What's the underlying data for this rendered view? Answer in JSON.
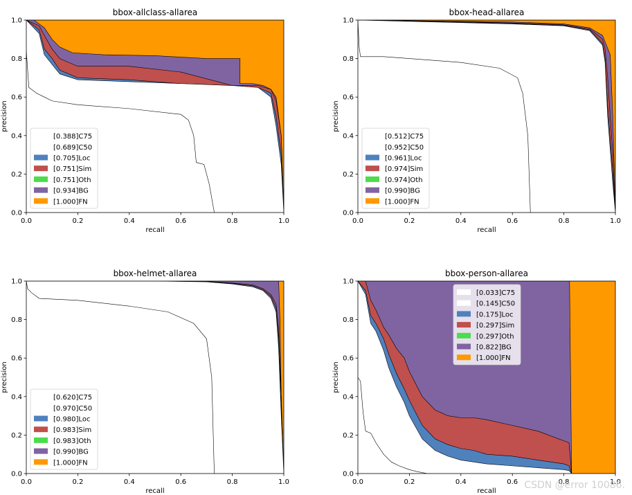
{
  "chart_data": [
    {
      "type": "area",
      "title": "bbox-allclass-allarea",
      "xlabel": "recall",
      "ylabel": "precision",
      "xlim": [
        0,
        1
      ],
      "ylim": [
        0,
        1
      ],
      "xticks": [
        "0.0",
        "0.2",
        "0.4",
        "0.6",
        "0.8",
        "1.0"
      ],
      "yticks": [
        "0.0",
        "0.2",
        "0.4",
        "0.6",
        "0.8",
        "1.0"
      ],
      "legend_position": "lower-left",
      "legend": [
        "[0.388]C75",
        "[0.689]C50",
        "[0.705]Loc",
        "[0.751]Sim",
        "[0.751]Oth",
        "[0.934]BG",
        "[1.000]FN"
      ],
      "series": [
        {
          "name": "FN",
          "x": [
            0,
            0.82,
            0.82,
            1.0
          ],
          "y": [
            1,
            1,
            1,
            1
          ]
        },
        {
          "name": "BG",
          "x": [
            0,
            0.03,
            0.05,
            0.07,
            0.1,
            0.13,
            0.18,
            0.3,
            0.5,
            0.7,
            0.83,
            0.83,
            0.88,
            0.92,
            0.95,
            0.97,
            0.99,
            1.0
          ],
          "y": [
            1,
            1,
            0.98,
            0.96,
            0.9,
            0.86,
            0.83,
            0.82,
            0.815,
            0.8,
            0.8,
            0.67,
            0.67,
            0.66,
            0.64,
            0.6,
            0.4,
            0
          ]
        },
        {
          "name": "Sim",
          "x": [
            0,
            0.05,
            0.07,
            0.1,
            0.13,
            0.2,
            0.4,
            0.6,
            0.8,
            0.9,
            0.95,
            0.97,
            0.99,
            1.0
          ],
          "y": [
            1,
            0.97,
            0.92,
            0.85,
            0.8,
            0.76,
            0.76,
            0.73,
            0.66,
            0.66,
            0.64,
            0.58,
            0.4,
            0
          ]
        },
        {
          "name": "Loc",
          "x": [
            0,
            0.05,
            0.07,
            0.1,
            0.13,
            0.2,
            0.4,
            0.6,
            0.8,
            0.9,
            0.95,
            0.97,
            0.99,
            1.0
          ],
          "y": [
            1,
            0.95,
            0.85,
            0.8,
            0.74,
            0.7,
            0.69,
            0.67,
            0.66,
            0.65,
            0.62,
            0.5,
            0.3,
            0
          ]
        },
        {
          "name": "C50",
          "x": [
            0,
            0.05,
            0.07,
            0.1,
            0.13,
            0.2,
            0.4,
            0.6,
            0.8,
            0.9,
            0.95,
            0.97,
            0.99,
            1.0
          ],
          "y": [
            1,
            0.93,
            0.82,
            0.77,
            0.72,
            0.69,
            0.68,
            0.67,
            0.66,
            0.65,
            0.6,
            0.45,
            0.25,
            0
          ]
        },
        {
          "name": "C75",
          "x": [
            0,
            0.01,
            0.04,
            0.07,
            0.1,
            0.2,
            0.4,
            0.6,
            0.63,
            0.65,
            0.66,
            0.69,
            0.71,
            0.73
          ],
          "y": [
            0.84,
            0.65,
            0.62,
            0.6,
            0.58,
            0.56,
            0.54,
            0.51,
            0.48,
            0.4,
            0.26,
            0.25,
            0.15,
            0
          ]
        }
      ]
    },
    {
      "type": "area",
      "title": "bbox-head-allarea",
      "xlabel": "recall",
      "ylabel": "precision",
      "xlim": [
        0,
        1
      ],
      "ylim": [
        0,
        1
      ],
      "xticks": [
        "0.0",
        "0.2",
        "0.4",
        "0.6",
        "0.8",
        "1.0"
      ],
      "yticks": [
        "0.0",
        "0.2",
        "0.4",
        "0.6",
        "0.8",
        "1.0"
      ],
      "legend_position": "lower-left",
      "legend": [
        "[0.512]C75",
        "[0.952]C50",
        "[0.961]Loc",
        "[0.974]Sim",
        "[0.974]Oth",
        "[0.990]BG",
        "[1.000]FN"
      ],
      "series": [
        {
          "name": "FN",
          "x": [
            0,
            1.0
          ],
          "y": [
            1,
            1
          ]
        },
        {
          "name": "BG",
          "x": [
            0,
            0.3,
            0.6,
            0.8,
            0.9,
            0.95,
            0.98,
            0.99,
            1.0
          ],
          "y": [
            1,
            0.995,
            0.99,
            0.98,
            0.96,
            0.92,
            0.82,
            0.5,
            0
          ]
        },
        {
          "name": "Sim",
          "x": [
            0,
            0.3,
            0.6,
            0.8,
            0.9,
            0.95,
            0.96,
            0.97,
            0.99,
            1.0
          ],
          "y": [
            1,
            0.995,
            0.985,
            0.975,
            0.955,
            0.9,
            0.85,
            0.7,
            0.3,
            0
          ]
        },
        {
          "name": "Loc",
          "x": [
            0,
            0.3,
            0.6,
            0.8,
            0.9,
            0.95,
            0.96,
            0.97,
            0.99,
            1.0
          ],
          "y": [
            1,
            0.993,
            0.982,
            0.972,
            0.95,
            0.88,
            0.8,
            0.55,
            0.2,
            0
          ]
        },
        {
          "name": "C50",
          "x": [
            0,
            0.3,
            0.6,
            0.8,
            0.9,
            0.95,
            0.96,
            0.97,
            0.99,
            1.0
          ],
          "y": [
            1,
            0.99,
            0.98,
            0.97,
            0.945,
            0.87,
            0.78,
            0.5,
            0.15,
            0
          ]
        },
        {
          "name": "C75",
          "x": [
            0,
            0.005,
            0.01,
            0.1,
            0.2,
            0.4,
            0.55,
            0.62,
            0.64,
            0.66,
            0.67
          ],
          "y": [
            1.0,
            0.86,
            0.81,
            0.81,
            0.8,
            0.78,
            0.75,
            0.7,
            0.62,
            0.4,
            0
          ]
        }
      ]
    },
    {
      "type": "area",
      "title": "bbox-helmet-allarea",
      "xlabel": "recall",
      "ylabel": "precision",
      "xlim": [
        0,
        1
      ],
      "ylim": [
        0,
        1
      ],
      "xticks": [
        "0.0",
        "0.2",
        "0.4",
        "0.6",
        "0.8",
        "1.0"
      ],
      "yticks": [
        "0.0",
        "0.2",
        "0.4",
        "0.6",
        "0.8",
        "1.0"
      ],
      "legend_position": "lower-left",
      "legend": [
        "[0.620]C75",
        "[0.970]C50",
        "[0.980]Loc",
        "[0.983]Sim",
        "[0.983]Oth",
        "[0.990]BG",
        "[1.000]FN"
      ],
      "series": [
        {
          "name": "FN",
          "x": [
            0,
            1.0
          ],
          "y": [
            1,
            1
          ]
        },
        {
          "name": "BG",
          "x": [
            0,
            0.5,
            0.7,
            0.9,
            0.98,
            0.985,
            0.99,
            1.0
          ],
          "y": [
            1,
            1,
            1,
            1,
            1,
            0.8,
            0.4,
            0
          ]
        },
        {
          "name": "Sim",
          "x": [
            0,
            0.5,
            0.7,
            0.8,
            0.88,
            0.92,
            0.95,
            0.97,
            0.98,
            0.99,
            1.0
          ],
          "y": [
            1,
            1,
            0.998,
            0.99,
            0.98,
            0.96,
            0.93,
            0.88,
            0.75,
            0.4,
            0
          ]
        },
        {
          "name": "Loc",
          "x": [
            0,
            0.5,
            0.7,
            0.8,
            0.88,
            0.92,
            0.95,
            0.97,
            0.98,
            0.99,
            1.0
          ],
          "y": [
            1,
            1,
            0.997,
            0.988,
            0.975,
            0.955,
            0.92,
            0.86,
            0.7,
            0.35,
            0
          ]
        },
        {
          "name": "C50",
          "x": [
            0,
            0.5,
            0.7,
            0.8,
            0.88,
            0.92,
            0.95,
            0.97,
            0.98,
            0.99,
            1.0
          ],
          "y": [
            1,
            1,
            0.996,
            0.985,
            0.97,
            0.95,
            0.91,
            0.84,
            0.65,
            0.3,
            0
          ]
        },
        {
          "name": "C75",
          "x": [
            0,
            0.005,
            0.02,
            0.05,
            0.2,
            0.4,
            0.55,
            0.65,
            0.7,
            0.72,
            0.73
          ],
          "y": [
            1.0,
            0.96,
            0.94,
            0.91,
            0.9,
            0.87,
            0.84,
            0.78,
            0.7,
            0.5,
            0
          ]
        }
      ]
    },
    {
      "type": "area",
      "title": "bbox-person-allarea",
      "xlabel": "recall",
      "ylabel": "precision",
      "xlim": [
        0,
        1
      ],
      "ylim": [
        0,
        1
      ],
      "xticks": [
        "0.0",
        "0.2",
        "0.4",
        "0.6",
        "0.8",
        "1.0"
      ],
      "yticks": [
        "0.0",
        "0.2",
        "0.4",
        "0.6",
        "0.8",
        "1.0"
      ],
      "legend_position": "upper-center",
      "legend": [
        "[0.033]C75",
        "[0.145]C50",
        "[0.175]Loc",
        "[0.297]Sim",
        "[0.297]Oth",
        "[0.822]BG",
        "[1.000]FN"
      ],
      "series": [
        {
          "name": "FN",
          "x": [
            0,
            1.0
          ],
          "y": [
            1,
            1
          ]
        },
        {
          "name": "BG",
          "x": [
            0,
            0.822,
            0.822,
            0.83
          ],
          "y": [
            1,
            1,
            1,
            0
          ]
        },
        {
          "name": "Sim",
          "x": [
            0,
            0.03,
            0.05,
            0.07,
            0.08,
            0.1,
            0.12,
            0.15,
            0.18,
            0.2,
            0.25,
            0.3,
            0.35,
            0.4,
            0.45,
            0.5,
            0.6,
            0.7,
            0.8,
            0.82,
            0.83
          ],
          "y": [
            1,
            1,
            0.9,
            0.85,
            0.82,
            0.76,
            0.72,
            0.65,
            0.6,
            0.53,
            0.4,
            0.33,
            0.3,
            0.29,
            0.29,
            0.28,
            0.25,
            0.22,
            0.17,
            0.16,
            0
          ]
        },
        {
          "name": "Loc",
          "x": [
            0,
            0.03,
            0.05,
            0.07,
            0.1,
            0.12,
            0.15,
            0.18,
            0.2,
            0.25,
            0.3,
            0.35,
            0.4,
            0.45,
            0.5,
            0.6,
            0.7,
            0.8,
            0.82,
            0.83
          ],
          "y": [
            1,
            0.95,
            0.82,
            0.78,
            0.7,
            0.62,
            0.52,
            0.44,
            0.38,
            0.25,
            0.18,
            0.15,
            0.13,
            0.12,
            0.1,
            0.09,
            0.07,
            0.05,
            0.04,
            0
          ]
        },
        {
          "name": "C50",
          "x": [
            0,
            0.03,
            0.05,
            0.07,
            0.1,
            0.12,
            0.15,
            0.18,
            0.2,
            0.25,
            0.3,
            0.35,
            0.4,
            0.45,
            0.5,
            0.6,
            0.7,
            0.8,
            0.82,
            0.83
          ],
          "y": [
            1,
            0.93,
            0.78,
            0.74,
            0.64,
            0.55,
            0.45,
            0.37,
            0.3,
            0.18,
            0.12,
            0.09,
            0.07,
            0.06,
            0.05,
            0.04,
            0.03,
            0.02,
            0.015,
            0
          ]
        },
        {
          "name": "C75",
          "x": [
            0,
            0.01,
            0.02,
            0.03,
            0.05,
            0.07,
            0.1,
            0.13,
            0.16,
            0.2,
            0.23,
            0.27
          ],
          "y": [
            0.5,
            0.48,
            0.32,
            0.22,
            0.21,
            0.16,
            0.1,
            0.06,
            0.04,
            0.02,
            0.01,
            0
          ]
        }
      ]
    }
  ],
  "colors": {
    "FN": "#ff9900",
    "BG": "#8064a2",
    "Oth": "#4cdc4c",
    "Sim": "#c0504d",
    "Loc": "#4f81bd",
    "C50": "#ffffff",
    "C75": "#ffffff"
  },
  "watermark": "CSDN @error 10086."
}
